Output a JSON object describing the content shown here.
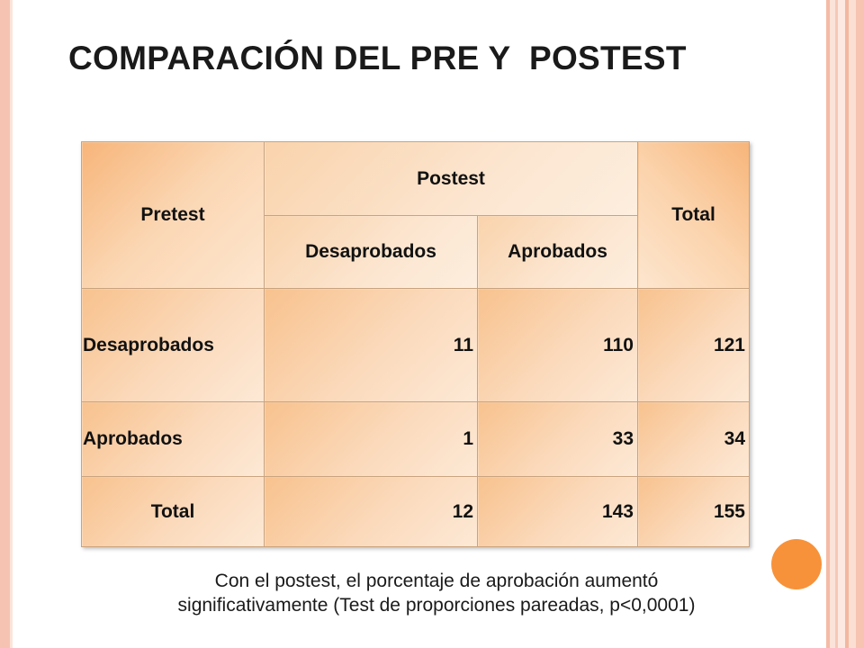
{
  "title": "COMPARACIÓN DEL PRE Y  POSTEST",
  "table": {
    "pretest_header": "Pretest",
    "postest_header": "Postest",
    "total_header": "Total",
    "sub_desaprobados": "Desaprobados",
    "sub_aprobados": "Aprobados",
    "rows": [
      {
        "label": "Desaprobados",
        "desaprobados": "11",
        "aprobados": "110",
        "total": "121"
      },
      {
        "label": "Aprobados",
        "desaprobados": "1",
        "aprobados": "33",
        "total": "34"
      },
      {
        "label": "Total",
        "desaprobados": "12",
        "aprobados": "143",
        "total": "155"
      }
    ]
  },
  "caption": {
    "line1": "Con el postest, el porcentaje de aprobación aumentó",
    "line2": "significativamente (Test de proporciones pareadas, p<0,0001)"
  },
  "colors": {
    "accent_dot": "#f7923a",
    "border_stripe": "#f6c3b3",
    "table_fill": "#fbdabc"
  }
}
